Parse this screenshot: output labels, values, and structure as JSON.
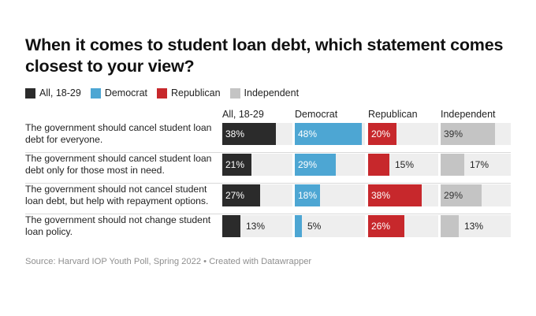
{
  "chart_data": {
    "type": "bar",
    "title": "When it comes to student loan debt, which statement comes closest to your view?",
    "categories": [
      "The government should cancel student loan debt for everyone.",
      "The government should cancel student loan debt only for those most in need.",
      "The government should not cancel student loan debt, but help with repayment options.",
      "The government should not change student loan policy."
    ],
    "series": [
      {
        "name": "All, 18-29",
        "color": "#2b2b2b",
        "values": [
          38,
          21,
          27,
          13
        ]
      },
      {
        "name": "Democrat",
        "color": "#4da6d3",
        "values": [
          48,
          29,
          18,
          5
        ]
      },
      {
        "name": "Republican",
        "color": "#c7282c",
        "values": [
          20,
          15,
          38,
          26
        ]
      },
      {
        "name": "Independent",
        "color": "#c4c4c4",
        "values": [
          39,
          17,
          29,
          13
        ]
      }
    ],
    "value_suffix": "%",
    "xlim": [
      0,
      50
    ],
    "legend_position": "top-left",
    "source": "Source: Harvard IOP Youth Poll, Spring 2022 • Created with Datawrapper"
  }
}
